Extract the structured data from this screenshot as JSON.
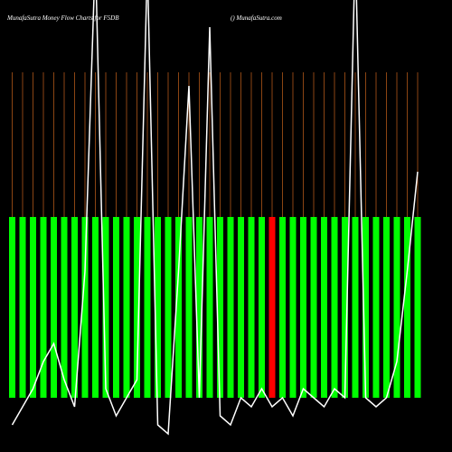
{
  "chart_data": {
    "type": "bar",
    "title": "MunafaSutra  Money Flow  Charts for F5DB",
    "subtitle": "() MunafaSutra.com",
    "values": [
      1,
      1,
      1,
      1,
      1,
      1,
      1,
      1,
      1,
      1,
      1,
      1,
      1,
      1,
      1,
      1,
      1,
      1,
      1,
      1,
      1,
      1,
      1,
      1,
      1,
      1,
      1,
      1,
      1,
      1,
      1,
      1,
      1,
      1,
      1,
      1,
      1,
      1,
      1,
      1
    ],
    "colors": [
      "#00ff00",
      "#00ff00",
      "#00ff00",
      "#00ff00",
      "#00ff00",
      "#00ff00",
      "#00ff00",
      "#00ff00",
      "#00ff00",
      "#00ff00",
      "#00ff00",
      "#00ff00",
      "#00ff00",
      "#00ff00",
      "#00ff00",
      "#00ff00",
      "#00ff00",
      "#00ff00",
      "#00ff00",
      "#00ff00",
      "#00ff00",
      "#00ff00",
      "#00ff00",
      "#00ff00",
      "#00ff00",
      "#ff0000",
      "#00ff00",
      "#00ff00",
      "#00ff00",
      "#00ff00",
      "#00ff00",
      "#00ff00",
      "#00ff00",
      "#00ff00",
      "#00ff00",
      "#00ff00",
      "#00ff00",
      "#00ff00",
      "#00ff00",
      "#00ff00"
    ],
    "ylim": [
      0,
      1
    ],
    "line_values": [
      30,
      50,
      70,
      100,
      120,
      80,
      50,
      200,
      550,
      70,
      40,
      60,
      80,
      540,
      30,
      20,
      200,
      405,
      60,
      470,
      40,
      30,
      60,
      50,
      70,
      50,
      60,
      40,
      70,
      60,
      50,
      70,
      60,
      560,
      60,
      50,
      60,
      100,
      200,
      310
    ],
    "line_color": "#ffffff",
    "line_ylim": [
      0,
      500
    ]
  }
}
